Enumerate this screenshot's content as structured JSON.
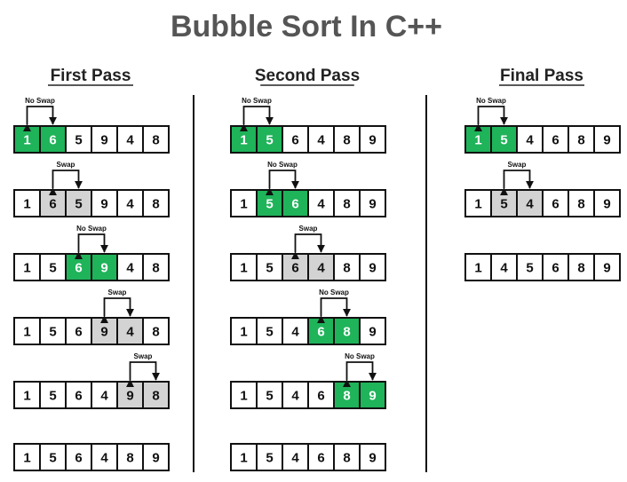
{
  "title": "Bubble Sort In C++",
  "colors": {
    "swap_fill": "#d3d3d3",
    "no_swap_fill": "#1fb35a",
    "border": "#111111",
    "text": "#111111",
    "highlight_text": "#ffffff",
    "title_text": "#555555"
  },
  "passes": [
    {
      "title": "First Pass",
      "steps": [
        {
          "values": [
            1,
            6,
            5,
            9,
            4,
            8
          ],
          "compare": [
            0,
            1
          ],
          "label": "No Swap",
          "swap": false
        },
        {
          "values": [
            1,
            6,
            5,
            9,
            4,
            8
          ],
          "compare": [
            1,
            2
          ],
          "label": "Swap",
          "swap": true
        },
        {
          "values": [
            1,
            5,
            6,
            9,
            4,
            8
          ],
          "compare": [
            2,
            3
          ],
          "label": "No Swap",
          "swap": false
        },
        {
          "values": [
            1,
            5,
            6,
            9,
            4,
            8
          ],
          "compare": [
            3,
            4
          ],
          "label": "Swap",
          "swap": true
        },
        {
          "values": [
            1,
            5,
            6,
            4,
            9,
            8
          ],
          "compare": [
            4,
            5
          ],
          "label": "Swap",
          "swap": true
        },
        {
          "values": [
            1,
            5,
            6,
            4,
            8,
            9
          ],
          "compare": null,
          "label": "",
          "swap": null
        }
      ]
    },
    {
      "title": "Second Pass",
      "steps": [
        {
          "values": [
            1,
            5,
            6,
            4,
            8,
            9
          ],
          "compare": [
            0,
            1
          ],
          "label": "No Swap",
          "swap": false
        },
        {
          "values": [
            1,
            5,
            6,
            4,
            8,
            9
          ],
          "compare": [
            1,
            2
          ],
          "label": "No Swap",
          "swap": false
        },
        {
          "values": [
            1,
            5,
            6,
            4,
            8,
            9
          ],
          "compare": [
            2,
            3
          ],
          "label": "Swap",
          "swap": true
        },
        {
          "values": [
            1,
            5,
            4,
            6,
            8,
            9
          ],
          "compare": [
            3,
            4
          ],
          "label": "No Swap",
          "swap": false
        },
        {
          "values": [
            1,
            5,
            4,
            6,
            8,
            9
          ],
          "compare": [
            4,
            5
          ],
          "label": "No Swap",
          "swap": false
        },
        {
          "values": [
            1,
            5,
            4,
            6,
            8,
            9
          ],
          "compare": null,
          "label": "",
          "swap": null
        }
      ]
    },
    {
      "title": "Final Pass",
      "steps": [
        {
          "values": [
            1,
            5,
            4,
            6,
            8,
            9
          ],
          "compare": [
            0,
            1
          ],
          "label": "No Swap",
          "swap": false
        },
        {
          "values": [
            1,
            5,
            4,
            6,
            8,
            9
          ],
          "compare": [
            1,
            2
          ],
          "label": "Swap",
          "swap": true
        },
        {
          "values": [
            1,
            4,
            5,
            6,
            8,
            9
          ],
          "compare": null,
          "label": "",
          "swap": null
        }
      ]
    }
  ]
}
